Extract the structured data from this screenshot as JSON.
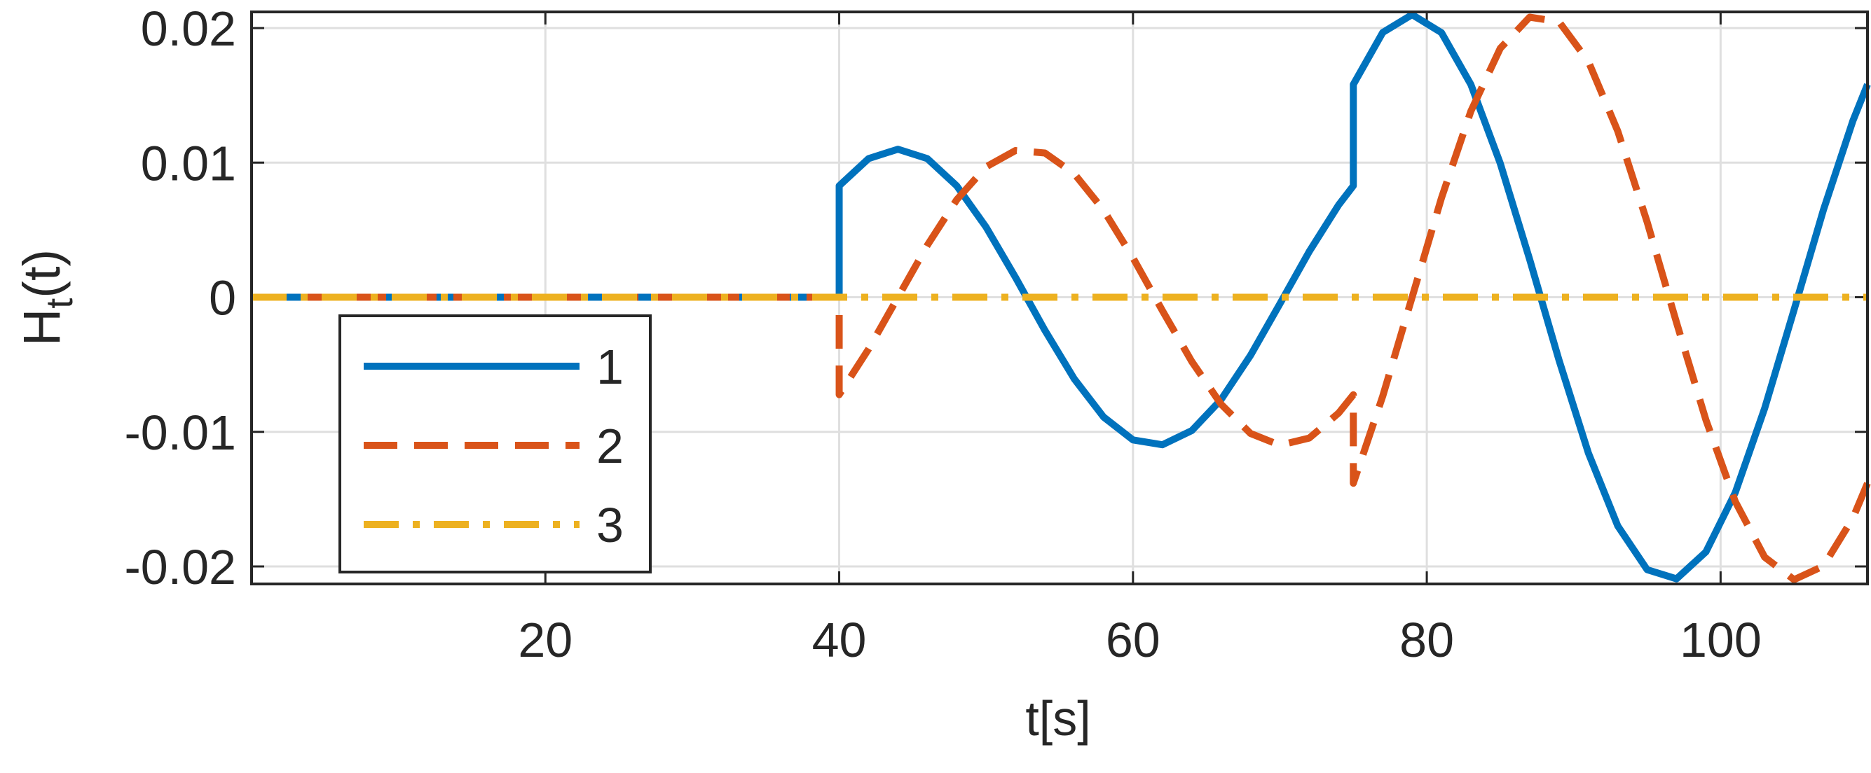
{
  "chart_data": {
    "type": "line",
    "xlabel": "t[s]",
    "ylabel": {
      "base": "H",
      "sub": "t",
      "rest": "(t)"
    },
    "x": [
      0,
      40,
      40,
      42,
      44,
      46,
      48,
      50,
      52,
      54,
      56,
      58,
      60,
      62,
      64,
      66,
      68,
      70,
      72,
      74,
      75,
      75,
      77,
      79,
      81,
      83,
      85,
      87,
      89,
      91,
      93,
      95,
      97,
      99,
      101,
      103,
      105,
      107,
      109,
      110
    ],
    "series": [
      {
        "name": "1",
        "color": "#0072bd",
        "style": "solid",
        "values": [
          0,
          0,
          0.00828,
          0.0103,
          0.011,
          0.0103,
          0.00828,
          0.00521,
          0.00148,
          -0.00245,
          -0.00606,
          -0.0089,
          -0.0106,
          -0.01096,
          -0.00991,
          -0.0076,
          -0.00432,
          -0.00049,
          0.0034,
          0.00686,
          0.00828,
          0.01581,
          0.01967,
          0.021,
          0.01966,
          0.01581,
          0.00995,
          0.00282,
          -0.00467,
          -0.01157,
          -0.01699,
          -0.02024,
          -0.02092,
          -0.01892,
          -0.01451,
          -0.00825,
          -0.00094,
          0.00649,
          0.01309,
          0.01581
        ]
      },
      {
        "name": "2",
        "color": "#d95319",
        "style": "dashed",
        "values": [
          0,
          0,
          -0.00724,
          -0.00385,
          0,
          0.00386,
          0.00724,
          0.00969,
          0.0109,
          0.01072,
          0.00918,
          0.00647,
          0.00293,
          -0.00099,
          -0.00477,
          -0.00795,
          -0.01012,
          -0.01099,
          -0.01046,
          -0.0086,
          -0.00724,
          -0.01382,
          -0.00735,
          0,
          0.00738,
          0.01382,
          0.01849,
          0.02081,
          0.02047,
          0.01752,
          0.01234,
          0.00559,
          -0.00188,
          -0.00911,
          -0.01518,
          -0.01931,
          -0.02098,
          -0.01997,
          -0.01642,
          -0.01382
        ]
      },
      {
        "name": "3",
        "color": "#edb120",
        "style": "dashdot",
        "values": [
          0,
          0,
          0,
          0,
          0,
          0,
          0,
          0,
          0,
          0,
          0,
          0,
          0,
          0,
          0,
          0,
          0,
          0,
          0,
          0,
          0,
          0,
          0,
          0,
          0,
          0,
          0,
          0,
          0,
          0,
          0,
          0,
          0,
          0,
          0,
          0,
          0,
          0,
          0,
          0
        ]
      }
    ],
    "xlim": [
      0,
      110
    ],
    "xticks": [
      20,
      40,
      60,
      80,
      100
    ],
    "ylim": [
      -0.0213,
      0.0212
    ],
    "yticks": [
      -0.02,
      -0.01,
      0,
      0.01,
      0.02
    ],
    "grid": true,
    "legend": "lower left"
  }
}
